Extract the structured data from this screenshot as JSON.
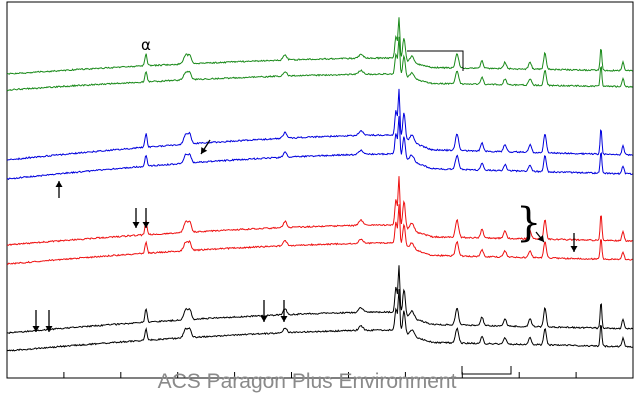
{
  "watermark": "ACS Paragon Plus Environment",
  "chart_data": {
    "type": "line",
    "title": "",
    "xlabel": "",
    "ylabel": "",
    "grid": false,
    "legend": "none",
    "xlim": [
      0,
      100
    ],
    "series": [
      {
        "color": "#1a8a1a",
        "offset": 0.0
      },
      {
        "color": "#1a8a1a",
        "offset": 0.0
      },
      {
        "color": "#0000dd",
        "offset": 0.0
      },
      {
        "color": "#0000dd",
        "offset": 0.0
      },
      {
        "color": "#ee1111",
        "offset": 0.0
      },
      {
        "color": "#ee1111",
        "offset": 0.0
      },
      {
        "color": "#000000",
        "offset": 0.0
      },
      {
        "color": "#000000",
        "offset": 0.0
      }
    ],
    "annotations": [
      {
        "label": "α"
      }
    ]
  }
}
